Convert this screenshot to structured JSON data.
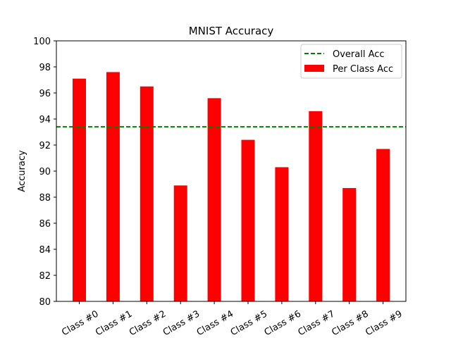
{
  "chart_data": {
    "type": "bar",
    "title": "MNIST Accuracy",
    "xlabel": "",
    "ylabel": "Accuracy",
    "ylim": [
      80,
      100
    ],
    "yticks": [
      80,
      82,
      84,
      86,
      88,
      90,
      92,
      94,
      96,
      98,
      100
    ],
    "categories": [
      "Class #0",
      "Class #1",
      "Class #2",
      "Class #3",
      "Class #4",
      "Class #5",
      "Class #6",
      "Class #7",
      "Class #8",
      "Class #9"
    ],
    "series": [
      {
        "name": "Per Class Acc",
        "values": [
          97.1,
          97.6,
          96.5,
          88.9,
          95.6,
          92.4,
          90.3,
          94.6,
          88.7,
          91.7
        ],
        "color": "#ff0000"
      }
    ],
    "reference_line": {
      "name": "Overall Acc",
      "value": 93.4,
      "color": "#008000",
      "style": "dashed"
    },
    "grid": false,
    "legend_position": "top-right"
  }
}
